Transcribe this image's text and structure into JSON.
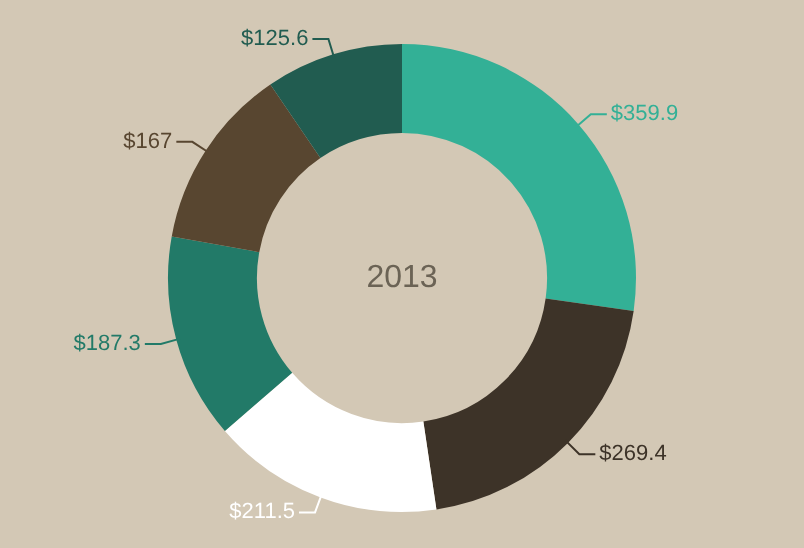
{
  "chart_data": {
    "type": "donut",
    "title": "2013",
    "categories": [
      null,
      null,
      null,
      null,
      null,
      null
    ],
    "values": [
      359.9,
      269.4,
      211.5,
      187.3,
      167,
      125.6
    ],
    "colors": [
      "#33b096",
      "#3d3328",
      "#ffffff",
      "#227a68",
      "#584630",
      "#215c50"
    ],
    "value_labels": [
      "$359.9",
      "$269.4",
      "$211.5",
      "$187.3",
      "$167",
      "$125.6"
    ],
    "legend": false
  }
}
